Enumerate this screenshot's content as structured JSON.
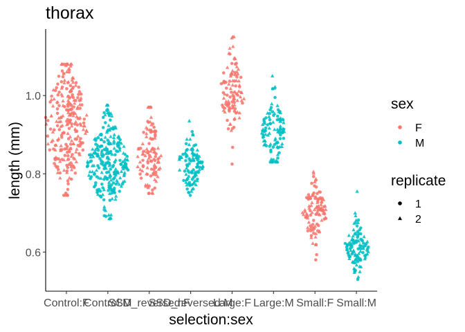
{
  "chart_data": {
    "type": "scatter",
    "subtype": "beeswarm",
    "title": "thorax",
    "xlabel": "selection:sex",
    "ylabel": "length (mm)",
    "ylim": [
      0.5,
      1.17
    ],
    "yticks": [
      0.6,
      0.8,
      1.0
    ],
    "ytick_labels": [
      "0.6",
      "0.8",
      "1.0"
    ],
    "grid": false,
    "categories": [
      "Control:F",
      "Control:M",
      "SSD_reversed:F",
      "SSD_reversed:M",
      "Large:F",
      "Large:M",
      "Small:F",
      "Small:M"
    ],
    "groups": [
      {
        "category": "Control:F",
        "sex": "F",
        "n": 260,
        "min": 0.745,
        "q1": 0.865,
        "median": 0.925,
        "q3": 0.985,
        "max": 1.08
      },
      {
        "category": "Control:M",
        "sex": "M",
        "n": 260,
        "min": 0.685,
        "q1": 0.78,
        "median": 0.825,
        "q3": 0.865,
        "max": 0.975
      },
      {
        "category": "SSD_reversed:F",
        "sex": "F",
        "n": 110,
        "min": 0.75,
        "q1": 0.8,
        "median": 0.84,
        "q3": 0.875,
        "max": 0.97
      },
      {
        "category": "SSD_reversed:M",
        "sex": "M",
        "n": 110,
        "min": 0.745,
        "q1": 0.8,
        "median": 0.825,
        "q3": 0.85,
        "max": 0.935
      },
      {
        "category": "Large:F",
        "sex": "F",
        "n": 110,
        "min": 0.825,
        "q1": 0.97,
        "median": 1.01,
        "q3": 1.055,
        "max": 1.15
      },
      {
        "category": "Large:M",
        "sex": "M",
        "n": 110,
        "min": 0.83,
        "q1": 0.875,
        "median": 0.905,
        "q3": 0.935,
        "max": 1.05
      },
      {
        "category": "Small:F",
        "sex": "F",
        "n": 110,
        "min": 0.58,
        "q1": 0.67,
        "median": 0.7,
        "q3": 0.725,
        "max": 0.805
      },
      {
        "category": "Small:M",
        "sex": "M",
        "n": 110,
        "min": 0.53,
        "q1": 0.59,
        "median": 0.61,
        "q3": 0.635,
        "max": 0.755
      }
    ],
    "colors": {
      "F": "#F8766D",
      "M": "#00BFC4"
    },
    "shapes": {
      "1": "circle",
      "2": "triangle"
    },
    "legend_placement": "right",
    "legends": [
      {
        "title": "sex",
        "items": [
          {
            "label": "F",
            "color": "#F8766D"
          },
          {
            "label": "M",
            "color": "#00BFC4"
          }
        ]
      },
      {
        "title": "replicate",
        "items": [
          {
            "label": "1",
            "shape": "circle"
          },
          {
            "label": "2",
            "shape": "triangle"
          }
        ]
      }
    ]
  }
}
